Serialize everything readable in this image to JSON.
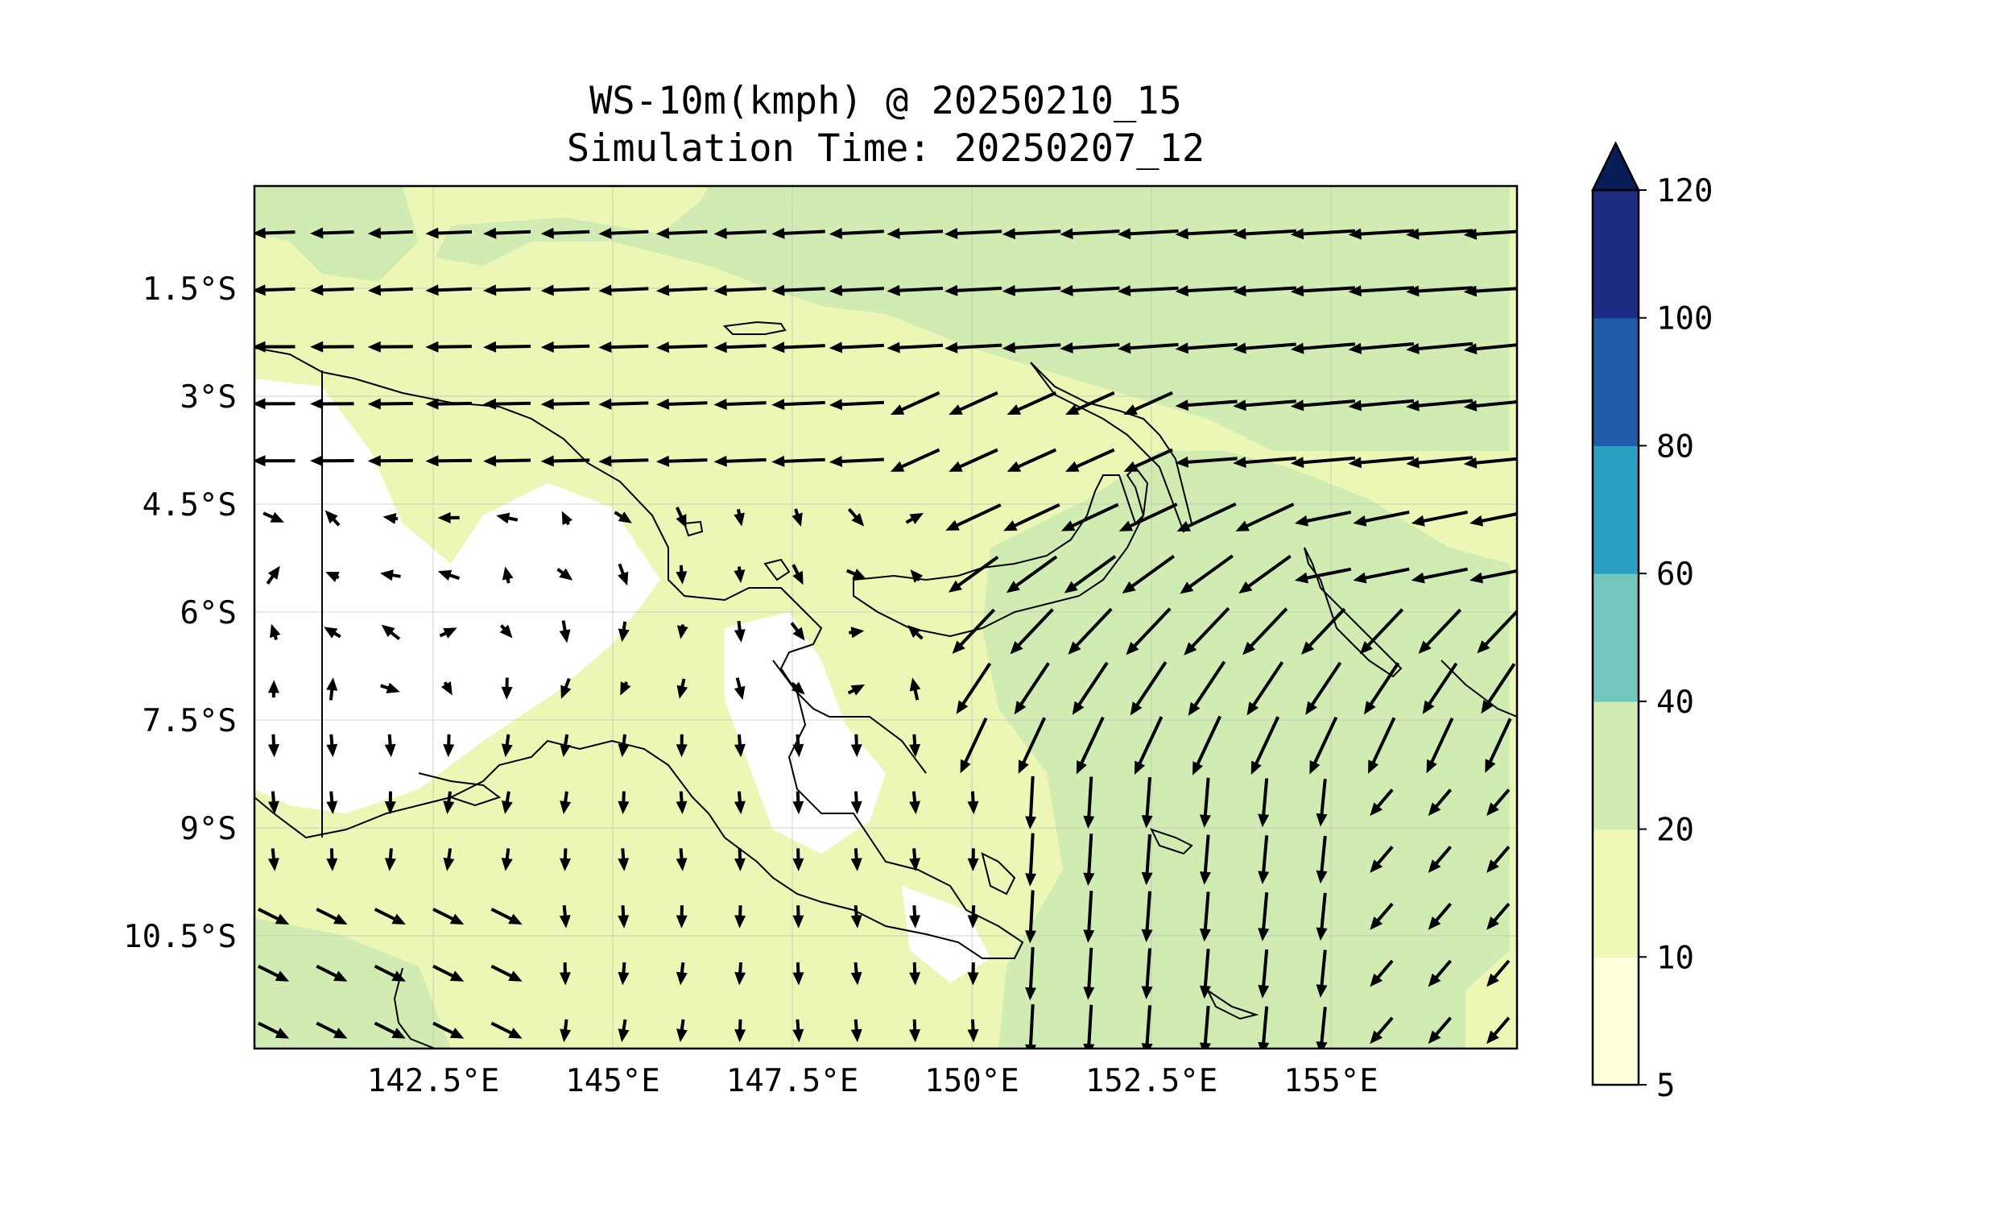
{
  "map": {
    "title_line1": "WS-10m(kmph) @ 20250210_15",
    "title_line2": "Simulation Time: 20250207_12",
    "lat_labels": [
      "1.5°S",
      "3°S",
      "4.5°S",
      "6°S",
      "7.5°S",
      "9°S",
      "10.5°S"
    ],
    "lon_labels": [
      "142.5°E",
      "145°E",
      "147.5°E",
      "150°E",
      "152.5°E",
      "155°E"
    ],
    "region_extent": {
      "lon_min": 140.0,
      "lon_max": 157.6,
      "lat_min": -12.0,
      "lat_max": 0.0
    }
  },
  "colorbar": {
    "tick_labels": [
      "5",
      "10",
      "20",
      "40",
      "60",
      "80",
      "100",
      "120"
    ],
    "extend": "max",
    "levels": [
      {
        "from": 5,
        "to": 10,
        "color": "#ffffd9"
      },
      {
        "from": 10,
        "to": 20,
        "color": "#f1f9ba"
      },
      {
        "from": 20,
        "to": 40,
        "color": "#d0ecb3"
      },
      {
        "from": 40,
        "to": 60,
        "color": "#73c6bd"
      },
      {
        "from": 60,
        "to": 80,
        "color": "#2aa0c3"
      },
      {
        "from": 80,
        "to": 100,
        "color": "#225ea8"
      },
      {
        "from": 100,
        "to": 120,
        "color": "#1d2d84"
      },
      {
        "from": 120,
        "to": null,
        "color": "#081d58"
      }
    ]
  },
  "colors": {
    "ocean_background": "#ecf7b6",
    "calm_land": "#ffffff",
    "arrow": "#000000",
    "coastline": "#000000",
    "grid": "#bdbdbd"
  }
}
